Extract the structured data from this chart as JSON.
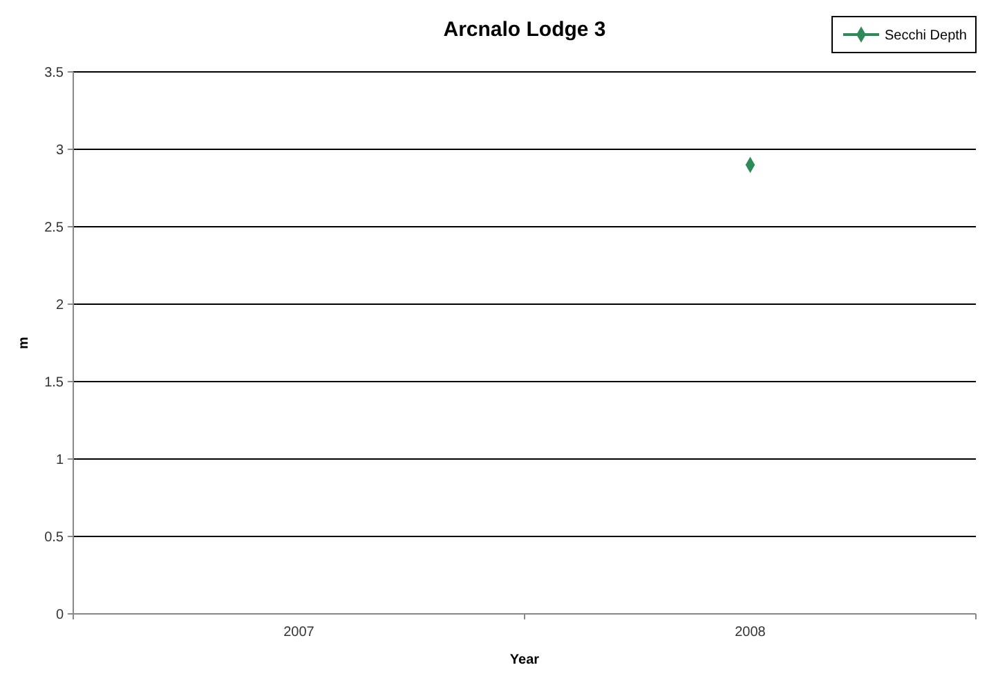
{
  "chart_data": {
    "type": "line",
    "title": "Arcnalo Lodge 3",
    "xlabel": "Year",
    "ylabel": "m",
    "categories": [
      "2007",
      "2008"
    ],
    "series": [
      {
        "name": "Secchi Depth",
        "color": "#2e8b57",
        "values": [
          null,
          2.9
        ]
      }
    ],
    "ylim": [
      0,
      3.5
    ],
    "yticks": [
      0,
      0.5,
      1,
      1.5,
      2,
      2.5,
      3,
      3.5
    ],
    "grid": "y",
    "legend": "top right",
    "marker": "diamond"
  }
}
